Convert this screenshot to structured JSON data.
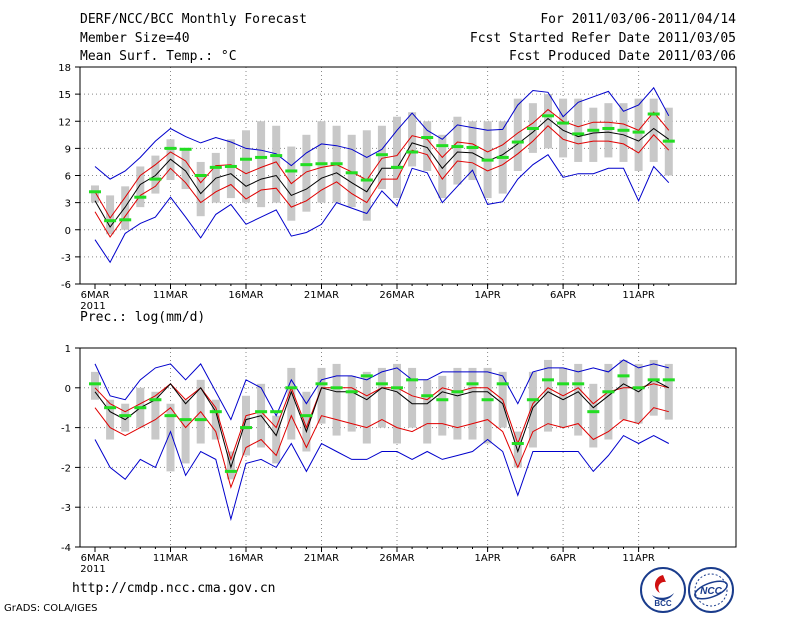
{
  "header": {
    "left": [
      "DERF/NCC/BCC Monthly Forecast",
      "Member Size=40",
      "Mean Surf. Temp.: °C"
    ],
    "right": [
      "For 2011/03/06-2011/04/14",
      "Fcst Started Refer Date 2011/03/05",
      "Fcst Produced Date 2011/03/06"
    ],
    "prec_label": "Prec.: log(mm/d)"
  },
  "footer": {
    "url": "http://cmdp.ncc.cma.gov.cn",
    "credit": "GrADS: COLA/IGES",
    "logo_bcc": "BCC",
    "logo_ncc": "NCC"
  },
  "colors": {
    "black": "#000000",
    "red": "#e00000",
    "blue": "#0000cc",
    "green": "#22dd22",
    "box": "#c8c8c8"
  },
  "chart_data": [
    {
      "type": "line",
      "title": "Mean Surf. Temp.: °C",
      "ylim": [
        -6,
        18
      ],
      "yticks": [
        -6,
        -3,
        0,
        3,
        6,
        9,
        12,
        15,
        18
      ],
      "x_ticks": [
        {
          "day": 0,
          "label": "6MAR",
          "sub": "2011"
        },
        {
          "day": 5,
          "label": "11MAR"
        },
        {
          "day": 10,
          "label": "16MAR"
        },
        {
          "day": 15,
          "label": "21MAR"
        },
        {
          "day": 20,
          "label": "26MAR"
        },
        {
          "day": 26,
          "label": "1APR"
        },
        {
          "day": 31,
          "label": "6APR"
        },
        {
          "day": 36,
          "label": "11APR"
        }
      ],
      "series": [
        {
          "name": "ensemble mean",
          "color": "black",
          "values": [
            3.2,
            0.3,
            2.5,
            5.0,
            6.0,
            7.8,
            6.5,
            4.0,
            5.7,
            6.2,
            4.8,
            5.6,
            6.0,
            3.8,
            4.5,
            5.7,
            6.3,
            5.2,
            4.2,
            6.8,
            6.8,
            9.6,
            9.1,
            6.8,
            8.6,
            8.5,
            7.6,
            8.3,
            9.5,
            10.8,
            12.3,
            11.0,
            10.3,
            10.7,
            10.8,
            10.5,
            9.8,
            11.2,
            10.0
          ]
        },
        {
          "name": "mean + spread",
          "color": "red",
          "values": [
            4.2,
            1.3,
            3.6,
            6.0,
            7.2,
            8.6,
            7.6,
            5.2,
            7.1,
            7.2,
            6.2,
            6.9,
            7.5,
            5.1,
            6.4,
            6.9,
            7.2,
            6.4,
            5.5,
            7.9,
            8.2,
            10.4,
            10.0,
            8.0,
            9.7,
            9.5,
            8.6,
            9.4,
            10.7,
            11.8,
            13.3,
            12.0,
            11.4,
            11.9,
            11.9,
            11.7,
            11.0,
            13.0,
            11.0
          ]
        },
        {
          "name": "mean - spread",
          "color": "red",
          "values": [
            2.0,
            -0.8,
            1.5,
            3.8,
            4.8,
            6.8,
            5.2,
            3.0,
            4.2,
            5.0,
            3.4,
            4.4,
            4.6,
            2.5,
            3.2,
            4.4,
            5.3,
            4.0,
            3.0,
            5.6,
            5.6,
            8.8,
            8.3,
            5.6,
            7.6,
            7.4,
            6.5,
            7.2,
            8.4,
            9.8,
            11.5,
            10.0,
            9.5,
            9.8,
            9.8,
            9.5,
            8.5,
            10.5,
            8.8
          ]
        },
        {
          "name": "ensemble max",
          "color": "blue",
          "values": [
            7.0,
            5.6,
            6.5,
            8.0,
            9.8,
            11.2,
            10.3,
            9.6,
            10.2,
            9.7,
            9.0,
            8.8,
            8.4,
            7.1,
            8.5,
            9.5,
            9.3,
            8.9,
            8.0,
            8.9,
            11.0,
            12.9,
            11.0,
            10.0,
            11.6,
            11.3,
            11.0,
            11.1,
            13.8,
            15.4,
            15.2,
            12.5,
            14.1,
            14.7,
            15.3,
            13.1,
            13.8,
            15.7,
            12.6
          ]
        },
        {
          "name": "ensemble min",
          "color": "blue",
          "values": [
            -1.1,
            -3.6,
            -0.4,
            0.7,
            1.4,
            3.6,
            1.4,
            -0.9,
            1.7,
            2.8,
            0.6,
            1.4,
            2.2,
            -0.7,
            -0.3,
            0.6,
            3.0,
            2.4,
            1.8,
            4.3,
            2.6,
            6.8,
            6.3,
            3.0,
            4.8,
            6.6,
            2.8,
            3.1,
            5.6,
            7.2,
            8.3,
            5.8,
            6.2,
            6.2,
            6.8,
            6.8,
            3.2,
            7.0,
            5.2
          ]
        }
      ],
      "deterministic": [
        4.2,
        1.0,
        1.1,
        3.6,
        5.6,
        9.0,
        8.9,
        6.0,
        6.9,
        7.0,
        7.8,
        8.0,
        8.2,
        6.5,
        7.2,
        7.3,
        7.3,
        6.3,
        5.5,
        8.3,
        6.9,
        8.6,
        10.2,
        9.3,
        9.2,
        9.1,
        7.7,
        8.0,
        9.7,
        11.2,
        12.6,
        11.8,
        10.6,
        11.0,
        11.2,
        11.0,
        10.8,
        12.8,
        9.8
      ],
      "boxes": [
        [
          3.0,
          4.9
        ],
        [
          -0.5,
          3.8
        ],
        [
          0.0,
          4.8
        ],
        [
          2.5,
          7.0
        ],
        [
          4.0,
          8.2
        ],
        [
          5.5,
          10.0
        ],
        [
          4.5,
          9.0
        ],
        [
          1.5,
          7.5
        ],
        [
          3.0,
          8.5
        ],
        [
          3.5,
          10.0
        ],
        [
          3.0,
          11.0
        ],
        [
          2.5,
          12.0
        ],
        [
          3.0,
          11.5
        ],
        [
          1.0,
          9.2
        ],
        [
          2.0,
          10.5
        ],
        [
          3.0,
          12.0
        ],
        [
          3.0,
          11.5
        ],
        [
          2.5,
          10.5
        ],
        [
          1.0,
          11.0
        ],
        [
          4.5,
          11.5
        ],
        [
          3.5,
          12.5
        ],
        [
          7.0,
          13.0
        ],
        [
          6.5,
          12.0
        ],
        [
          3.5,
          10.5
        ],
        [
          5.0,
          12.5
        ],
        [
          5.5,
          12.0
        ],
        [
          3.5,
          12.0
        ],
        [
          4.0,
          12.0
        ],
        [
          6.5,
          14.5
        ],
        [
          8.5,
          14.0
        ],
        [
          9.0,
          15.0
        ],
        [
          8.0,
          14.5
        ],
        [
          7.5,
          14.5
        ],
        [
          7.5,
          13.5
        ],
        [
          8.0,
          14.0
        ],
        [
          7.5,
          14.0
        ],
        [
          6.5,
          14.5
        ],
        [
          7.5,
          14.5
        ],
        [
          6.0,
          13.5
        ]
      ]
    },
    {
      "type": "line",
      "title": "Prec.: log(mm/d)",
      "ylim": [
        -4,
        1
      ],
      "yticks": [
        -4,
        -3,
        -2,
        -1,
        0,
        1
      ],
      "x_ticks": [
        {
          "day": 0,
          "label": "6MAR",
          "sub": "2011"
        },
        {
          "day": 5,
          "label": "11MAR"
        },
        {
          "day": 10,
          "label": "16MAR"
        },
        {
          "day": 15,
          "label": "21MAR"
        },
        {
          "day": 20,
          "label": "26MAR"
        },
        {
          "day": 26,
          "label": "1APR"
        },
        {
          "day": 31,
          "label": "6APR"
        },
        {
          "day": 36,
          "label": "11APR"
        }
      ],
      "series": [
        {
          "name": "ensemble mean",
          "color": "black",
          "values": [
            -0.1,
            -0.6,
            -0.8,
            -0.5,
            -0.3,
            0.1,
            -0.4,
            0.0,
            -0.6,
            -2.0,
            -0.8,
            -0.7,
            -1.2,
            -0.1,
            -1.1,
            0.0,
            -0.1,
            -0.1,
            -0.3,
            0.0,
            -0.1,
            -0.4,
            -0.4,
            -0.1,
            -0.2,
            -0.1,
            -0.1,
            -0.4,
            -1.6,
            -0.5,
            -0.1,
            -0.3,
            -0.1,
            -0.5,
            -0.2,
            0.1,
            -0.1,
            0.2,
            0.0
          ]
        },
        {
          "name": "mean + spread",
          "color": "red",
          "values": [
            0.0,
            -0.4,
            -0.6,
            -0.4,
            -0.2,
            0.1,
            -0.3,
            0.0,
            -0.5,
            -1.8,
            -0.7,
            -0.6,
            -1.0,
            0.0,
            -1.0,
            0.0,
            0.0,
            0.0,
            -0.2,
            0.0,
            0.0,
            -0.2,
            -0.3,
            0.0,
            -0.1,
            0.0,
            0.0,
            -0.3,
            -1.4,
            -0.4,
            0.0,
            -0.2,
            0.0,
            -0.4,
            -0.1,
            0.0,
            0.0,
            0.1,
            0.0
          ]
        },
        {
          "name": "mean - spread",
          "color": "red",
          "values": [
            -0.5,
            -1.0,
            -1.2,
            -1.0,
            -0.8,
            -0.5,
            -1.0,
            -0.6,
            -1.1,
            -2.5,
            -1.5,
            -1.3,
            -1.7,
            -0.7,
            -1.5,
            -0.7,
            -0.8,
            -0.9,
            -1.0,
            -0.8,
            -1.0,
            -1.1,
            -0.9,
            -0.9,
            -1.0,
            -0.9,
            -0.8,
            -1.1,
            -2.0,
            -1.1,
            -0.9,
            -1.0,
            -0.9,
            -1.3,
            -1.1,
            -0.8,
            -0.9,
            -0.5,
            -0.6
          ]
        },
        {
          "name": "ensemble max",
          "color": "blue",
          "values": [
            0.6,
            -0.2,
            -0.3,
            0.2,
            0.5,
            0.6,
            0.2,
            0.6,
            -0.1,
            -0.8,
            0.2,
            0.0,
            -0.7,
            0.2,
            -0.4,
            0.2,
            0.3,
            0.3,
            0.2,
            0.4,
            0.5,
            0.2,
            0.2,
            0.4,
            0.4,
            0.4,
            0.4,
            0.3,
            -0.4,
            0.4,
            0.5,
            0.5,
            0.4,
            0.5,
            0.4,
            0.7,
            0.5,
            0.6,
            0.5
          ]
        },
        {
          "name": "ensemble min",
          "color": "blue",
          "values": [
            -1.3,
            -2.0,
            -2.3,
            -1.8,
            -2.0,
            -1.1,
            -2.2,
            -1.6,
            -1.8,
            -3.3,
            -1.9,
            -1.8,
            -2.0,
            -1.4,
            -2.1,
            -1.4,
            -1.6,
            -1.8,
            -1.8,
            -1.6,
            -1.6,
            -1.8,
            -1.6,
            -1.8,
            -1.7,
            -1.6,
            -1.3,
            -1.6,
            -2.7,
            -1.6,
            -1.6,
            -1.6,
            -1.6,
            -2.1,
            -1.7,
            -1.2,
            -1.4,
            -1.2,
            -1.4
          ]
        }
      ],
      "deterministic": [
        0.1,
        -0.5,
        -0.7,
        -0.5,
        -0.3,
        -0.7,
        -0.8,
        -0.8,
        -0.6,
        -2.1,
        -1.0,
        -0.6,
        -0.6,
        0.0,
        -0.7,
        0.1,
        0.0,
        -0.1,
        0.3,
        0.1,
        0.0,
        0.2,
        -0.2,
        -0.3,
        -0.1,
        0.1,
        -0.3,
        0.1,
        -1.4,
        -0.3,
        0.2,
        0.1,
        0.1,
        -0.6,
        -0.1,
        0.3,
        0.0,
        0.2,
        0.2
      ],
      "boxes": [
        [
          -0.3,
          0.4
        ],
        [
          -1.3,
          -0.3
        ],
        [
          -1.1,
          -0.4
        ],
        [
          -1.0,
          0.0
        ],
        [
          -1.3,
          -0.1
        ],
        [
          -2.1,
          -0.4
        ],
        [
          -1.9,
          -0.3
        ],
        [
          -1.4,
          0.2
        ],
        [
          -1.3,
          -0.3
        ],
        [
          -2.3,
          -1.6
        ],
        [
          -1.7,
          -0.2
        ],
        [
          -1.5,
          0.1
        ],
        [
          -1.9,
          -0.7
        ],
        [
          -1.3,
          0.5
        ],
        [
          -1.6,
          -0.1
        ],
        [
          -0.9,
          0.5
        ],
        [
          -1.2,
          0.6
        ],
        [
          -1.1,
          0.3
        ],
        [
          -1.4,
          0.4
        ],
        [
          -1.0,
          0.5
        ],
        [
          -1.4,
          0.6
        ],
        [
          -1.0,
          0.5
        ],
        [
          -1.4,
          0.2
        ],
        [
          -1.2,
          0.3
        ],
        [
          -1.3,
          0.5
        ],
        [
          -1.3,
          0.5
        ],
        [
          -1.4,
          0.5
        ],
        [
          -1.0,
          0.4
        ],
        [
          -2.0,
          -1.1
        ],
        [
          -1.5,
          0.4
        ],
        [
          -1.1,
          0.7
        ],
        [
          -1.0,
          0.5
        ],
        [
          -1.2,
          0.6
        ],
        [
          -1.5,
          0.1
        ],
        [
          -1.3,
          0.6
        ],
        [
          -0.8,
          0.7
        ],
        [
          -0.9,
          0.6
        ],
        [
          -0.7,
          0.7
        ],
        [
          -0.8,
          0.6
        ]
      ]
    }
  ]
}
